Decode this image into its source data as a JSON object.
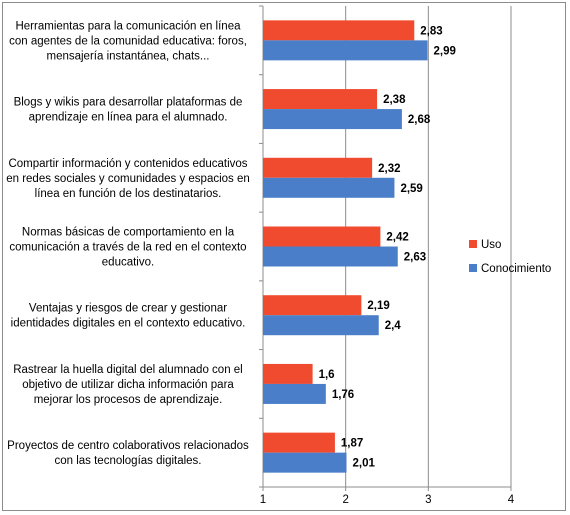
{
  "chart_data": {
    "type": "bar",
    "orientation": "horizontal",
    "categories": [
      [
        "Herramientas  para la comunicación  en línea",
        "con agentes de la comunidad educativa: foros,",
        "mensajería instantánea, chats..."
      ],
      [
        "Blogs y wikis para desarrollar plataformas de",
        "aprendizaje en línea para el alumnado."
      ],
      [
        "Compartir información y contenidos educativos",
        "en redes sociales y comunidades y espacios en",
        "línea en función de los destinatarios."
      ],
      [
        "Normas básicas de comportamiento en la",
        "comunicación a través de la red en el contexto",
        "educativo."
      ],
      [
        "Ventajas y riesgos de crear y gestionar",
        "identidades digitales en el contexto educativo."
      ],
      [
        "Rastrear la huella digital del alumnado con el",
        "objetivo de utilizar dicha información para",
        "mejorar los procesos de aprendizaje."
      ],
      [
        "Proyectos de centro colaborativos relacionados",
        "con las tecnologías digitales."
      ]
    ],
    "series": [
      {
        "name": "Uso",
        "color": "#f04a2f",
        "values": [
          2.83,
          2.38,
          2.32,
          2.42,
          2.19,
          1.6,
          1.87
        ],
        "labels": [
          "2,83",
          "2,38",
          "2,32",
          "2,42",
          "2,19",
          "1,6",
          "1,87"
        ]
      },
      {
        "name": "Conocimiento",
        "color": "#4a7ec8",
        "values": [
          2.99,
          2.68,
          2.59,
          2.63,
          2.4,
          1.76,
          2.01
        ],
        "labels": [
          "2,99",
          "2,68",
          "2,59",
          "2,63",
          "2,4",
          "1,76",
          "2,01"
        ]
      }
    ],
    "xlim": [
      1,
      4
    ],
    "xticks": [
      "1",
      "2",
      "3",
      "4"
    ],
    "grid": true,
    "legend": "right",
    "title": "",
    "xlabel": "",
    "ylabel": ""
  }
}
